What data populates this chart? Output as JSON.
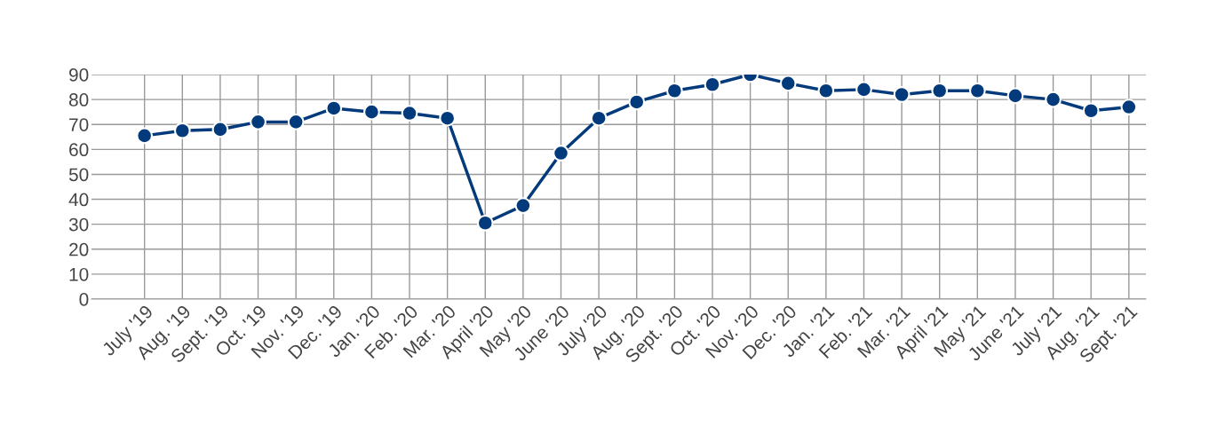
{
  "chart_data": {
    "type": "line",
    "categories": [
      "July '19",
      "Aug. '19",
      "Sept. '19",
      "Oct. '19",
      "Nov. '19",
      "Dec. '19",
      "Jan. '20",
      "Feb. '20",
      "Mar. '20",
      "April '20",
      "May '20",
      "June '20",
      "July '20",
      "Aug. '20",
      "Sept. '20",
      "Oct. '20",
      "Nov. '20",
      "Dec. '20",
      "Jan. '21",
      "Feb. '21",
      "Mar. '21",
      "April '21",
      "May '21",
      "June '21",
      "July '21",
      "Aug. '21",
      "Sept. '21"
    ],
    "series": [
      {
        "color": "#033a7c",
        "values": [
          65.5,
          67.5,
          68,
          71,
          71,
          76.5,
          75,
          74.5,
          72.5,
          30.5,
          37.5,
          58.5,
          72.5,
          79,
          83.5,
          86,
          90,
          86.5,
          83.5,
          84,
          82,
          83.5,
          83.5,
          81.5,
          80,
          75.5,
          77
        ]
      }
    ],
    "ylim": [
      0,
      90
    ],
    "yticks": [
      0,
      10,
      20,
      30,
      40,
      50,
      60,
      70,
      80,
      90
    ],
    "grid": true,
    "marker": "circle",
    "line_style": "solid"
  }
}
